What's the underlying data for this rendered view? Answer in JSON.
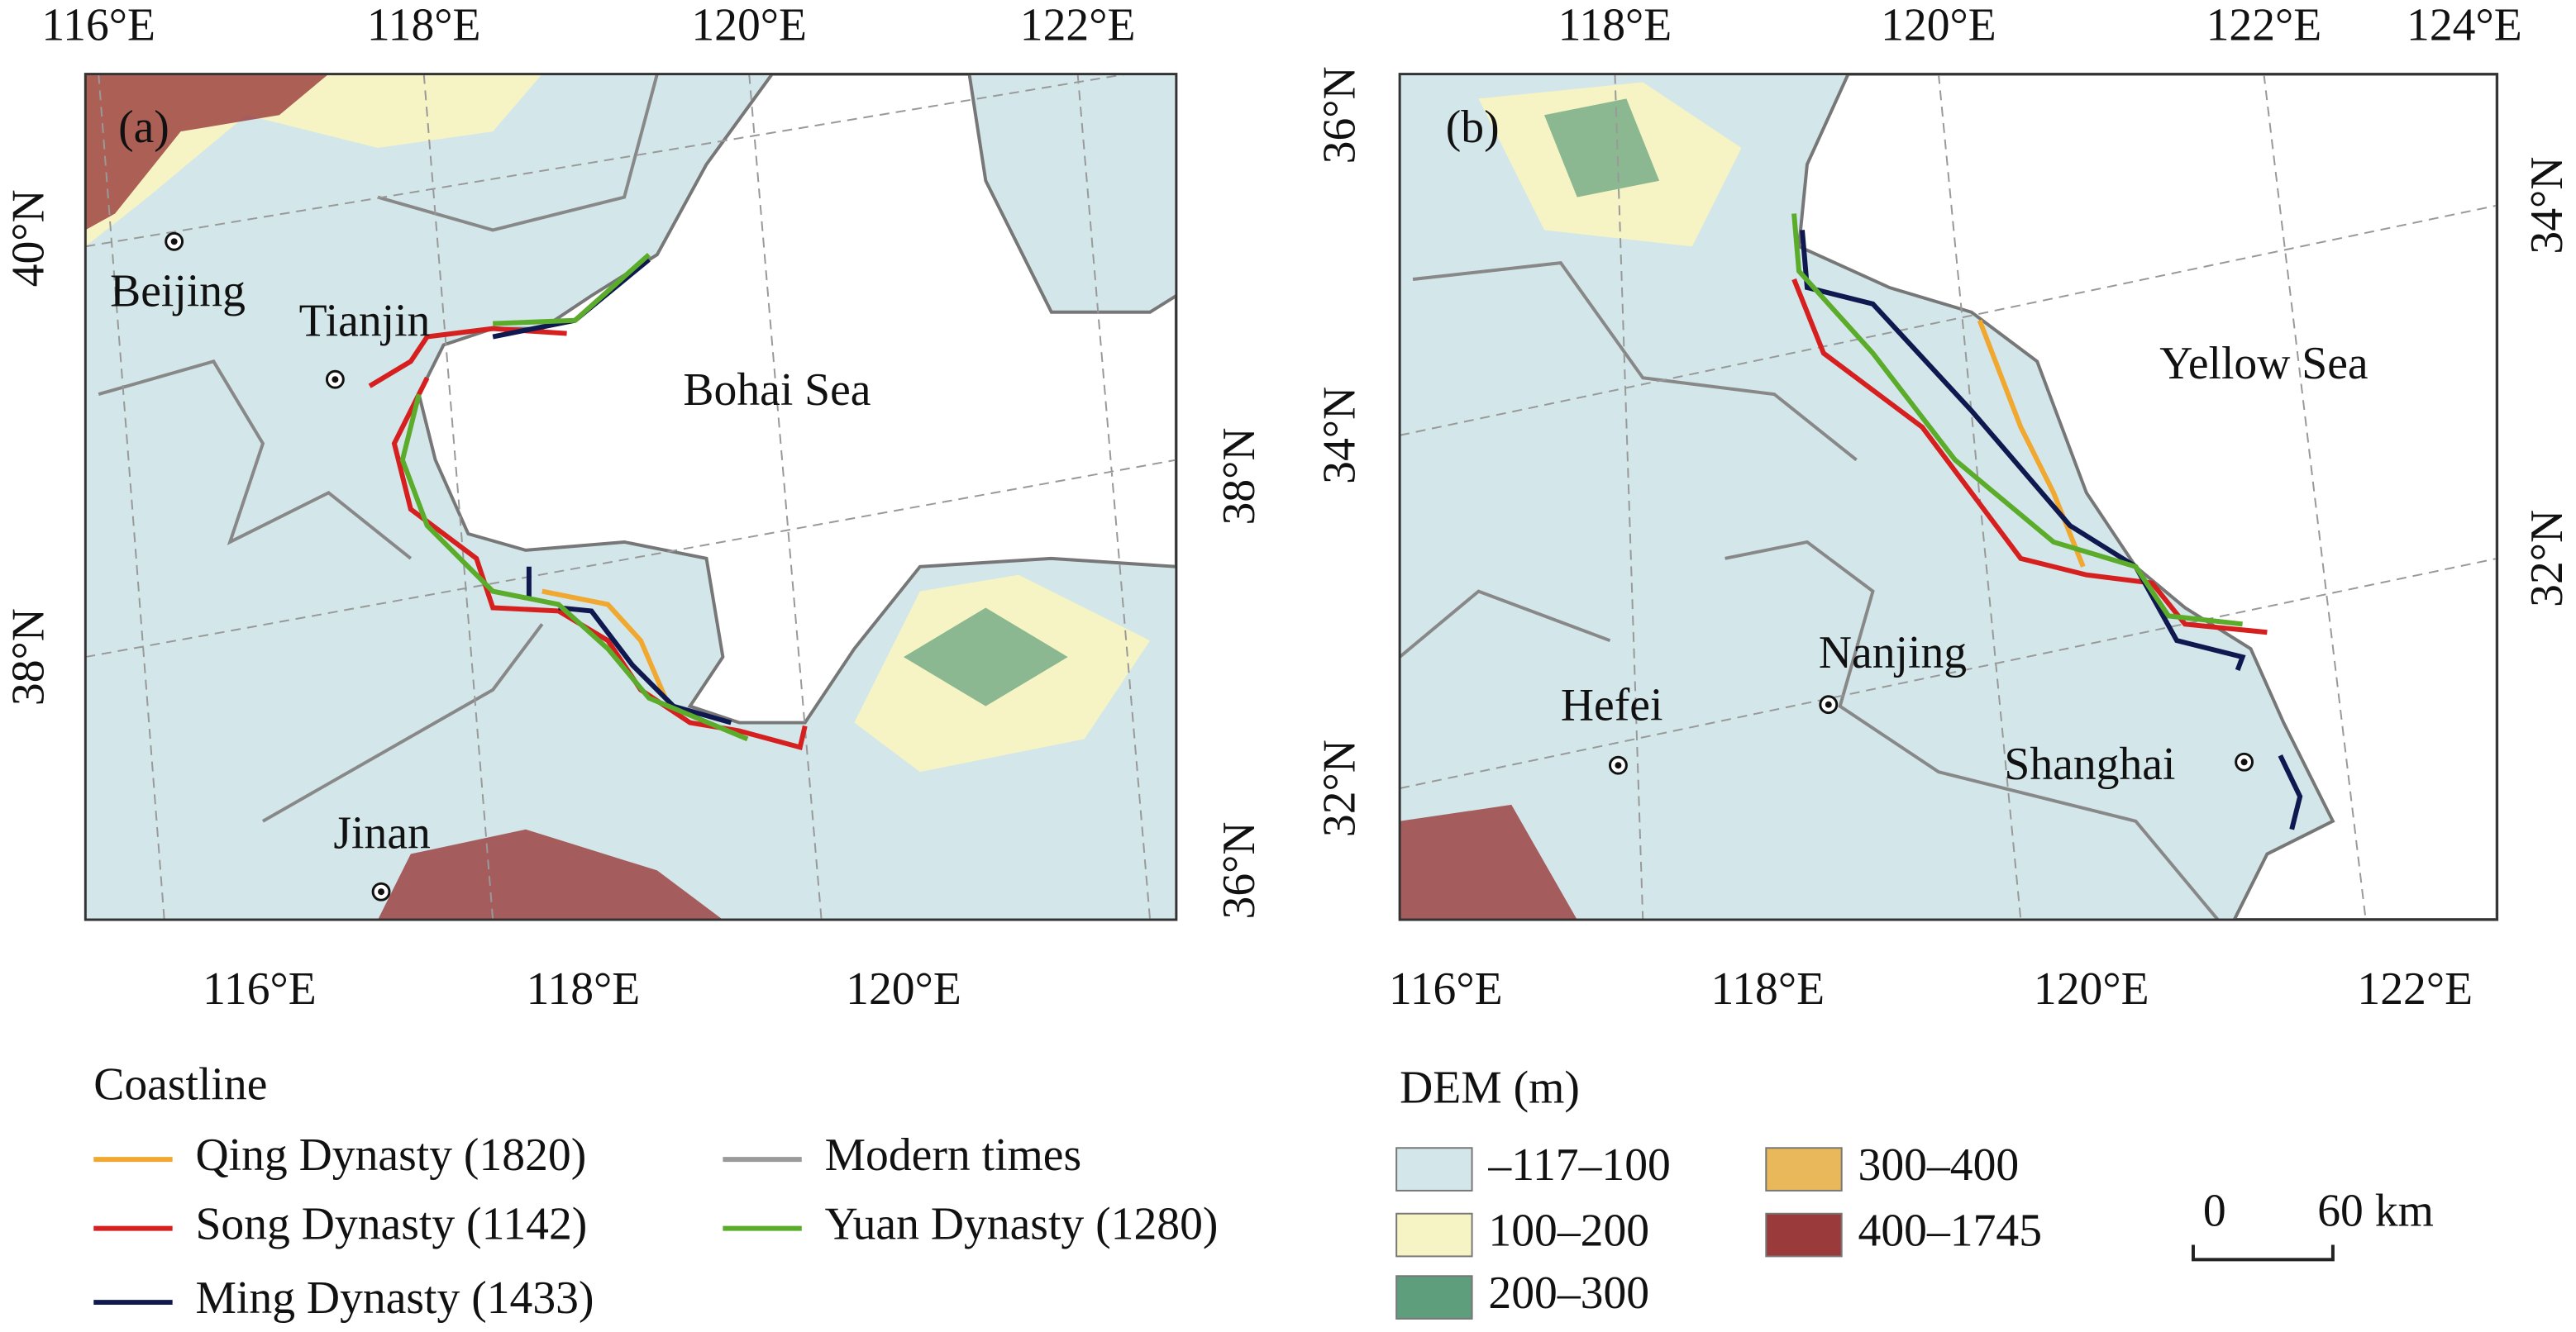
{
  "panels": [
    {
      "label": "(a)",
      "top_ticks": [
        "116°E",
        "118°E",
        "120°E",
        "122°E"
      ],
      "bottom_ticks": [
        "116°E",
        "118°E",
        "120°E"
      ],
      "left_ticks": [
        "40°N",
        "38°N"
      ],
      "right_ticks": [
        "38°N",
        "36°N"
      ],
      "places": [
        "Beijing",
        "Tianjin",
        "Jinan"
      ],
      "sea": "Bohai Sea"
    },
    {
      "label": "(b)",
      "top_ticks": [
        "118°E",
        "120°E",
        "122°E",
        "124°E"
      ],
      "bottom_ticks": [
        "116°E",
        "118°E",
        "120°E",
        "122°E"
      ],
      "left_ticks": [
        "36°N",
        "34°N",
        "32°N"
      ],
      "right_ticks": [
        "34°N",
        "32°N"
      ],
      "places": [
        "Hefei",
        "Nanjing",
        "Shanghai"
      ],
      "sea": "Yellow Sea"
    }
  ],
  "legend": {
    "coastline": {
      "title": "Coastline",
      "items": [
        {
          "name": "Qing Dynasty (1820)",
          "color": "#f0a830"
        },
        {
          "name": "Song Dynasty (1142)",
          "color": "#d62020"
        },
        {
          "name": "Ming Dynasty (1433)",
          "color": "#101850"
        },
        {
          "name": "Modern times",
          "color": "#9a9a9a"
        },
        {
          "name": "Yuan Dynasty (1280)",
          "color": "#5aac2a"
        }
      ]
    },
    "dem": {
      "title": "DEM (m)",
      "items": [
        {
          "name": "–117–100",
          "color": "#d3e6e9"
        },
        {
          "name": "100–200",
          "color": "#f6f4c4"
        },
        {
          "name": "200–300",
          "color": "#5f9e7c"
        },
        {
          "name": "300–400",
          "color": "#e8b85a"
        },
        {
          "name": "400–1745",
          "color": "#9a3a3a"
        }
      ]
    }
  },
  "scale_bar": {
    "labels": [
      "0",
      "60 km"
    ]
  }
}
